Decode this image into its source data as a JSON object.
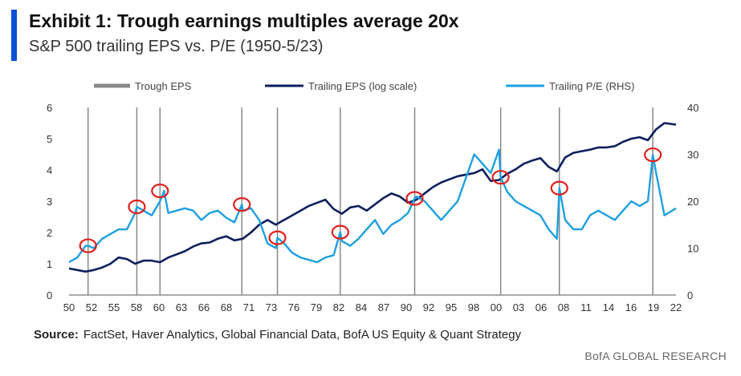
{
  "header": {
    "title": "Exhibit 1: Trough earnings multiples average 20x",
    "subtitle": "S&P 500 trailing EPS vs. P/E (1950-5/23)"
  },
  "footer": {
    "source_label": "Source:",
    "source_text": "FactSet, Haver Analytics, Global Financial Data, BofA US Equity & Quant Strategy",
    "brand": "BofA GLOBAL RESEARCH"
  },
  "colors": {
    "accent": "#0b4fd6",
    "trough": "#888888",
    "eps": "#0d1f5c",
    "pe": "#1ea0e0",
    "circle": "#e0201c"
  },
  "chart_data": {
    "type": "line",
    "title": "Exhibit 1: Trough earnings multiples average 20x",
    "subtitle": "S&P 500 trailing EPS vs. P/E (1950-5/23)",
    "legend_position": "top",
    "grid": false,
    "x_ticks": [
      "50",
      "52",
      "55",
      "58",
      "60",
      "63",
      "66",
      "68",
      "71",
      "73",
      "76",
      "79",
      "82",
      "84",
      "87",
      "90",
      "92",
      "95",
      "98",
      "00",
      "03",
      "06",
      "08",
      "11",
      "14",
      "16",
      "19",
      "22"
    ],
    "xlim": [
      1950,
      2023.4
    ],
    "y_left": {
      "ylim": [
        0,
        6
      ],
      "ticks": [
        "0",
        "1",
        "2",
        "3",
        "4",
        "5",
        "6"
      ]
    },
    "y_right": {
      "ylim": [
        0,
        40
      ],
      "ticks": [
        "0",
        "10",
        "20",
        "30",
        "40"
      ]
    },
    "trough_years": [
      1952.3,
      1958.2,
      1961.0,
      1970.9,
      1975.2,
      1982.8,
      1991.8,
      2002.2,
      2009.3,
      2020.6
    ],
    "trough_pe": [
      10.5,
      18.8,
      22.2,
      19.3,
      12.2,
      13.4,
      20.6,
      25.1,
      22.8,
      29.9
    ],
    "series": [
      {
        "name": "Trough EPS",
        "kind": "vertical-lines"
      },
      {
        "name": "Trailing EPS (log scale)",
        "axis": "left",
        "x": [
          1950,
          1951,
          1952,
          1953,
          1954,
          1955,
          1956,
          1957,
          1958,
          1959,
          1960,
          1961,
          1962,
          1963,
          1964,
          1965,
          1966,
          1967,
          1968,
          1969,
          1970,
          1971,
          1972,
          1973,
          1974,
          1975,
          1976,
          1977,
          1978,
          1979,
          1980,
          1981,
          1982,
          1983,
          1984,
          1985,
          1986,
          1987,
          1988,
          1989,
          1990,
          1991,
          1992,
          1993,
          1994,
          1995,
          1996,
          1997,
          1998,
          1999,
          2000,
          2001,
          2002,
          2003,
          2004,
          2005,
          2006,
          2007,
          2008,
          2009,
          2010,
          2011,
          2012,
          2013,
          2014,
          2015,
          2016,
          2017,
          2018,
          2019,
          2020,
          2021,
          2022,
          2023.4
        ],
        "y": [
          0.85,
          0.8,
          0.75,
          0.8,
          0.88,
          1.0,
          1.2,
          1.15,
          1.0,
          1.1,
          1.1,
          1.05,
          1.2,
          1.3,
          1.4,
          1.55,
          1.65,
          1.68,
          1.8,
          1.88,
          1.75,
          1.8,
          2.0,
          2.25,
          2.4,
          2.25,
          2.4,
          2.55,
          2.7,
          2.85,
          2.95,
          3.05,
          2.75,
          2.6,
          2.8,
          2.85,
          2.7,
          2.9,
          3.1,
          3.25,
          3.15,
          2.95,
          3.05,
          3.25,
          3.45,
          3.6,
          3.7,
          3.8,
          3.85,
          3.9,
          4.02,
          3.65,
          3.68,
          3.88,
          4.02,
          4.2,
          4.3,
          4.38,
          4.1,
          3.95,
          4.4,
          4.55,
          4.6,
          4.65,
          4.72,
          4.72,
          4.76,
          4.9,
          5.0,
          5.05,
          4.95,
          5.3,
          5.5,
          5.45
        ]
      },
      {
        "name": "Trailing P/E (RHS)",
        "axis": "right",
        "x": [
          1950,
          1951,
          1952,
          1952.3,
          1953,
          1954,
          1955,
          1956,
          1957,
          1958,
          1958.2,
          1959,
          1960,
          1961,
          1961.5,
          1962,
          1963,
          1964,
          1965,
          1966,
          1967,
          1968,
          1969,
          1970,
          1970.9,
          1971,
          1972,
          1973,
          1974,
          1975,
          1975.2,
          1976,
          1977,
          1978,
          1979,
          1980,
          1981,
          1982,
          1982.8,
          1983,
          1984,
          1985,
          1986,
          1987,
          1988,
          1989,
          1990,
          1991,
          1991.8,
          1992,
          1993,
          1994,
          1995,
          1996,
          1997,
          1998,
          1999,
          2000,
          2001,
          2002,
          2002.2,
          2003,
          2004,
          2005,
          2006,
          2007,
          2008,
          2009,
          2009.3,
          2010,
          2011,
          2012,
          2013,
          2014,
          2015,
          2016,
          2017,
          2018,
          2019,
          2020,
          2020.6,
          2021,
          2022,
          2023.4
        ],
        "y": [
          7,
          8,
          10.5,
          10.5,
          10,
          12,
          13,
          14,
          14,
          17.5,
          18.8,
          18,
          17,
          20,
          22.2,
          17.5,
          18,
          18.5,
          18,
          16,
          17.5,
          18,
          16.5,
          15.5,
          19.3,
          18,
          18.5,
          16,
          11,
          10,
          12.2,
          11,
          9,
          8,
          7.5,
          7,
          8,
          8.5,
          13.4,
          11.5,
          10.5,
          12,
          14,
          16,
          13,
          15,
          16,
          17.5,
          20.6,
          21,
          20,
          18,
          16,
          18,
          20,
          25,
          30,
          28,
          26,
          31,
          25.1,
          22,
          20,
          19,
          18,
          17,
          14,
          12,
          22.8,
          16,
          14,
          14,
          17,
          18,
          17,
          16,
          18,
          20,
          19,
          20,
          29.9,
          26,
          17,
          18.5
        ]
      }
    ]
  }
}
